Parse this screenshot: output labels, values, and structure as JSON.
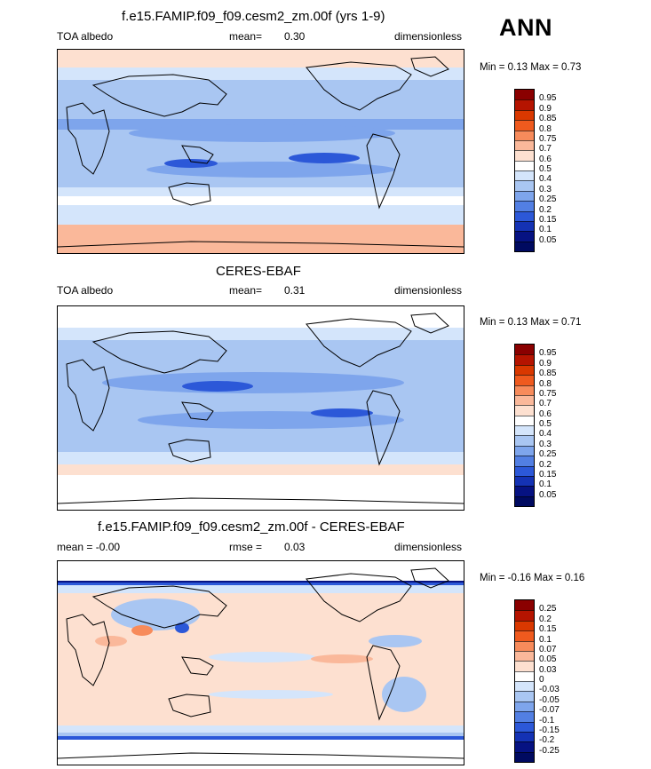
{
  "season": "ANN",
  "panels": [
    {
      "id": "model",
      "title": "f.e15.FAMIP.f09_f09.cesm2_zm.00f (yrs 1-9)",
      "left_label": "TOA albedo",
      "center_label": "mean=",
      "center_value": "0.30",
      "right_label": "dimensionless",
      "min_max_text": "Min =   0.13 Max =   0.73",
      "colorbar_labels": [
        "0.95",
        "0.9",
        "0.85",
        "0.8",
        "0.75",
        "0.7",
        "0.6",
        "0.5",
        "0.4",
        "0.3",
        "0.25",
        "0.2",
        "0.15",
        "0.1",
        "0.05"
      ],
      "colorbar_colors": [
        "#8a0000",
        "#b51400",
        "#d93800",
        "#ef5a1e",
        "#f78b5b",
        "#fab89a",
        "#fde0d0",
        "#ffffff",
        "#d4e5fb",
        "#a9c6f2",
        "#7ea5ec",
        "#527fe3",
        "#2c58d8",
        "#1432b4",
        "#061282",
        "#000a60"
      ]
    },
    {
      "id": "obs",
      "title": "CERES-EBAF",
      "left_label": "TOA albedo",
      "center_label": "mean=",
      "center_value": "0.31",
      "right_label": "dimensionless",
      "min_max_text": "Min =   0.13 Max =   0.71",
      "colorbar_labels": [
        "0.95",
        "0.9",
        "0.85",
        "0.8",
        "0.75",
        "0.7",
        "0.6",
        "0.5",
        "0.4",
        "0.3",
        "0.25",
        "0.2",
        "0.15",
        "0.1",
        "0.05"
      ],
      "colorbar_colors": [
        "#8a0000",
        "#b51400",
        "#d93800",
        "#ef5a1e",
        "#f78b5b",
        "#fab89a",
        "#fde0d0",
        "#ffffff",
        "#d4e5fb",
        "#a9c6f2",
        "#7ea5ec",
        "#527fe3",
        "#2c58d8",
        "#1432b4",
        "#061282",
        "#000a60"
      ]
    },
    {
      "id": "diff",
      "title": "f.e15.FAMIP.f09_f09.cesm2_zm.00f - CERES-EBAF",
      "left_label": "mean =  -0.00",
      "center_label": "rmse =",
      "center_value": "0.03",
      "right_label": "dimensionless",
      "min_max_text": "Min =  -0.16 Max =   0.16",
      "colorbar_labels": [
        "0.25",
        "0.2",
        "0.15",
        "0.1",
        "0.07",
        "0.05",
        "0.03",
        "0",
        "-0.03",
        "-0.05",
        "-0.07",
        "-0.1",
        "-0.15",
        "-0.2",
        "-0.25"
      ],
      "colorbar_colors": [
        "#8a0000",
        "#b51400",
        "#d93800",
        "#ef5a1e",
        "#f78b5b",
        "#fab89a",
        "#fde0d0",
        "#ffffff",
        "#d4e5fb",
        "#a9c6f2",
        "#7ea5ec",
        "#527fe3",
        "#2c58d8",
        "#1432b4",
        "#061282",
        "#000a60"
      ]
    }
  ],
  "chart_data": [
    {
      "type": "heatmap",
      "title": "f.e15.FAMIP.f09_f09.cesm2_zm.00f (yrs 1-9)",
      "variable": "TOA albedo",
      "units": "dimensionless",
      "mean": 0.3,
      "min": 0.13,
      "max": 0.73,
      "contour_levels": [
        0.05,
        0.1,
        0.15,
        0.2,
        0.25,
        0.3,
        0.4,
        0.5,
        0.6,
        0.7,
        0.75,
        0.8,
        0.85,
        0.9,
        0.95
      ]
    },
    {
      "type": "heatmap",
      "title": "CERES-EBAF",
      "variable": "TOA albedo",
      "units": "dimensionless",
      "mean": 0.31,
      "min": 0.13,
      "max": 0.71,
      "contour_levels": [
        0.05,
        0.1,
        0.15,
        0.2,
        0.25,
        0.3,
        0.4,
        0.5,
        0.6,
        0.7,
        0.75,
        0.8,
        0.85,
        0.9,
        0.95
      ]
    },
    {
      "type": "heatmap",
      "title": "f.e15.FAMIP.f09_f09.cesm2_zm.00f - CERES-EBAF",
      "units": "dimensionless",
      "mean": -0.0,
      "rmse": 0.03,
      "min": -0.16,
      "max": 0.16,
      "contour_levels": [
        -0.25,
        -0.2,
        -0.15,
        -0.1,
        -0.07,
        -0.05,
        -0.03,
        0,
        0.03,
        0.05,
        0.07,
        0.1,
        0.15,
        0.2,
        0.25
      ]
    }
  ]
}
